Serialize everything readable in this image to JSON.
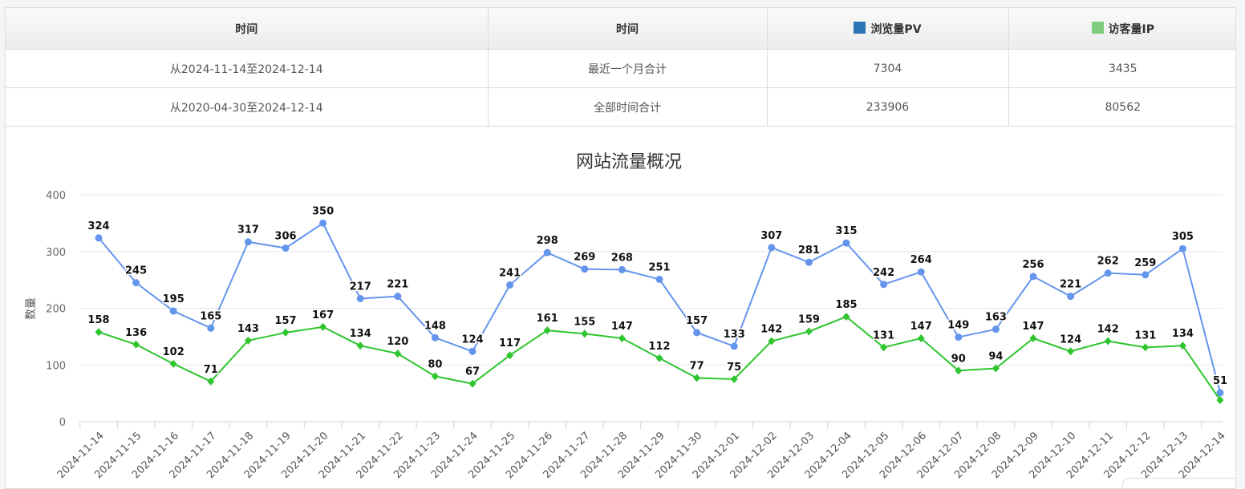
{
  "table": {
    "headers": [
      {
        "label": "时间"
      },
      {
        "label": "时间"
      },
      {
        "label": "浏览量PV",
        "swatch": "#2e75b6"
      },
      {
        "label": "访客量IP",
        "swatch": "#7fce7f"
      }
    ],
    "rows": [
      [
        "从2024-11-14至2024-12-14",
        "最近一个月合计",
        "7304",
        "3435"
      ],
      [
        "从2020-04-30至2024-12-14",
        "全部时间合计",
        "233906",
        "80562"
      ]
    ]
  },
  "chart_data": {
    "type": "line",
    "title": "网站流量概况",
    "ylabel": "数量",
    "xlabel": "",
    "ylim": [
      0,
      400
    ],
    "yticks": [
      0,
      100,
      200,
      300,
      400
    ],
    "grid": true,
    "categories": [
      "2024-11-14",
      "2024-11-15",
      "2024-11-16",
      "2024-11-17",
      "2024-11-18",
      "2024-11-19",
      "2024-11-20",
      "2024-11-21",
      "2024-11-22",
      "2024-11-23",
      "2024-11-24",
      "2024-11-25",
      "2024-11-26",
      "2024-11-27",
      "2024-11-28",
      "2024-11-29",
      "2024-11-30",
      "2024-12-01",
      "2024-12-02",
      "2024-12-03",
      "2024-12-04",
      "2024-12-05",
      "2024-12-06",
      "2024-12-07",
      "2024-12-08",
      "2024-12-09",
      "2024-12-10",
      "2024-12-11",
      "2024-12-12",
      "2024-12-13",
      "2024-12-14"
    ],
    "series": [
      {
        "color": "#6495ed",
        "marker": "circle",
        "label_last": true,
        "values": [
          324,
          245,
          195,
          165,
          317,
          306,
          350,
          217,
          221,
          148,
          124,
          241,
          298,
          269,
          268,
          251,
          157,
          133,
          307,
          281,
          315,
          242,
          264,
          149,
          163,
          256,
          221,
          262,
          259,
          305,
          51
        ]
      },
      {
        "color": "#2ec52e",
        "marker": "diamond",
        "label_last": false,
        "values": [
          158,
          136,
          102,
          71,
          143,
          157,
          167,
          134,
          120,
          80,
          67,
          117,
          161,
          155,
          147,
          112,
          77,
          75,
          142,
          159,
          185,
          131,
          147,
          90,
          94,
          147,
          124,
          142,
          131,
          134,
          38
        ]
      }
    ]
  }
}
